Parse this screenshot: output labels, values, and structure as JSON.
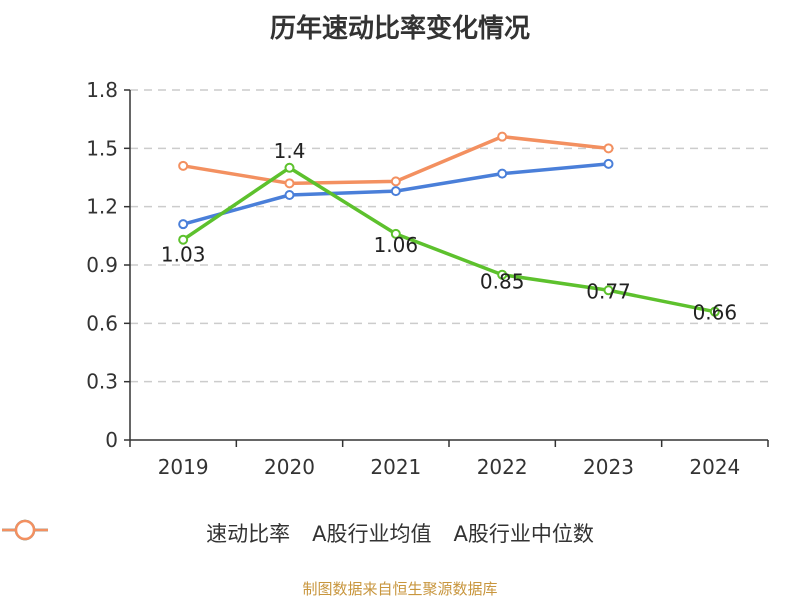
{
  "title": "历年速动比率变化情况",
  "source": "制图数据来自恒生聚源数据库",
  "chart_data": {
    "type": "line",
    "title": "历年速动比率变化情况",
    "categories": [
      "2019",
      "2020",
      "2021",
      "2022",
      "2023",
      "2024"
    ],
    "ylim": [
      0,
      1.8
    ],
    "yticks": [
      "0",
      "0.3",
      "0.6",
      "0.9",
      "1.2",
      "1.5",
      "1.8"
    ],
    "grid": "horizontal-dashed",
    "legend_position": "bottom",
    "series": [
      {
        "name": "速动比率",
        "color": "#5dc12d",
        "values": [
          1.03,
          1.4,
          1.06,
          0.85,
          0.77,
          0.66
        ],
        "labels": [
          "1.03",
          "1.4",
          "1.06",
          "0.85",
          "0.77",
          "0.66"
        ]
      },
      {
        "name": "A股行业均值",
        "color": "#4a7fd9",
        "values": [
          1.11,
          1.26,
          1.28,
          1.37,
          1.42,
          null
        ]
      },
      {
        "name": "A股行业中位数",
        "color": "#f39060",
        "values": [
          1.41,
          1.32,
          1.33,
          1.56,
          1.5,
          null
        ]
      }
    ]
  }
}
